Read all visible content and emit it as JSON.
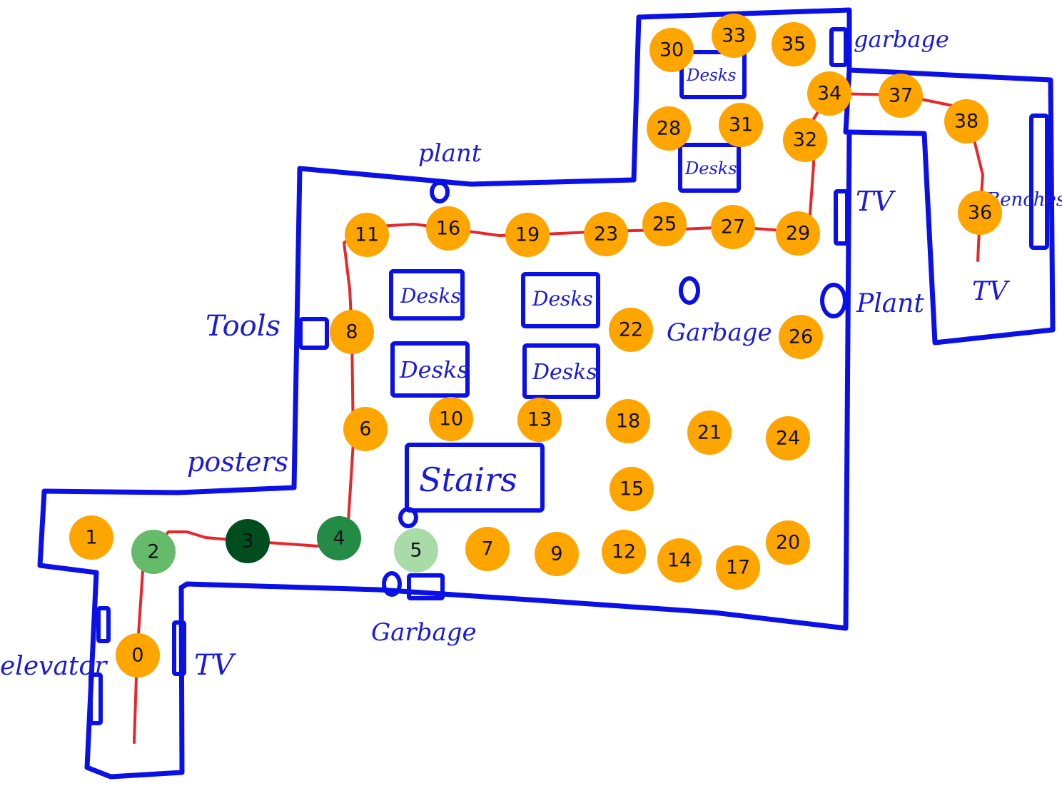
{
  "colors": {
    "wall": "#0a10e6",
    "route": "#e8272b",
    "node_default": "#ffa500",
    "node_text": "#111111"
  },
  "labels": {
    "plant_top": "plant",
    "plant_right": "Plant",
    "tools": "Tools",
    "posters": "posters",
    "elevator": "elevator",
    "tv_left": "TV",
    "tv_mid": "TV",
    "tv_bottom_right": "TV",
    "garbage_bottom": "Garbage",
    "garbage_mid": "Garbage",
    "garbage_top": "garbage",
    "benches": "Benches",
    "stairs": "Stairs",
    "desks": [
      "Desks",
      "Desks",
      "Desks",
      "Desks",
      "Desks",
      "Desks"
    ]
  },
  "nodes": [
    {
      "id": "0",
      "color": "#ffa500"
    },
    {
      "id": "1",
      "color": "#ffa500"
    },
    {
      "id": "2",
      "color": "#66bb6a"
    },
    {
      "id": "3",
      "color": "#004d1f"
    },
    {
      "id": "4",
      "color": "#238b45"
    },
    {
      "id": "5",
      "color": "#a8dba8"
    },
    {
      "id": "6",
      "color": "#ffa500"
    },
    {
      "id": "7",
      "color": "#ffa500"
    },
    {
      "id": "8",
      "color": "#ffa500"
    },
    {
      "id": "9",
      "color": "#ffa500"
    },
    {
      "id": "10",
      "color": "#ffa500"
    },
    {
      "id": "11",
      "color": "#ffa500"
    },
    {
      "id": "12",
      "color": "#ffa500"
    },
    {
      "id": "13",
      "color": "#ffa500"
    },
    {
      "id": "14",
      "color": "#ffa500"
    },
    {
      "id": "15",
      "color": "#ffa500"
    },
    {
      "id": "16",
      "color": "#ffa500"
    },
    {
      "id": "17",
      "color": "#ffa500"
    },
    {
      "id": "18",
      "color": "#ffa500"
    },
    {
      "id": "19",
      "color": "#ffa500"
    },
    {
      "id": "20",
      "color": "#ffa500"
    },
    {
      "id": "21",
      "color": "#ffa500"
    },
    {
      "id": "22",
      "color": "#ffa500"
    },
    {
      "id": "23",
      "color": "#ffa500"
    },
    {
      "id": "24",
      "color": "#ffa500"
    },
    {
      "id": "25",
      "color": "#ffa500"
    },
    {
      "id": "26",
      "color": "#ffa500"
    },
    {
      "id": "27",
      "color": "#ffa500"
    },
    {
      "id": "28",
      "color": "#ffa500"
    },
    {
      "id": "29",
      "color": "#ffa500"
    },
    {
      "id": "30",
      "color": "#ffa500"
    },
    {
      "id": "31",
      "color": "#ffa500"
    },
    {
      "id": "32",
      "color": "#ffa500"
    },
    {
      "id": "33",
      "color": "#ffa500"
    },
    {
      "id": "34",
      "color": "#ffa500"
    },
    {
      "id": "35",
      "color": "#ffa500"
    },
    {
      "id": "36",
      "color": "#ffa500"
    },
    {
      "id": "37",
      "color": "#ffa500"
    },
    {
      "id": "38",
      "color": "#ffa500"
    }
  ]
}
